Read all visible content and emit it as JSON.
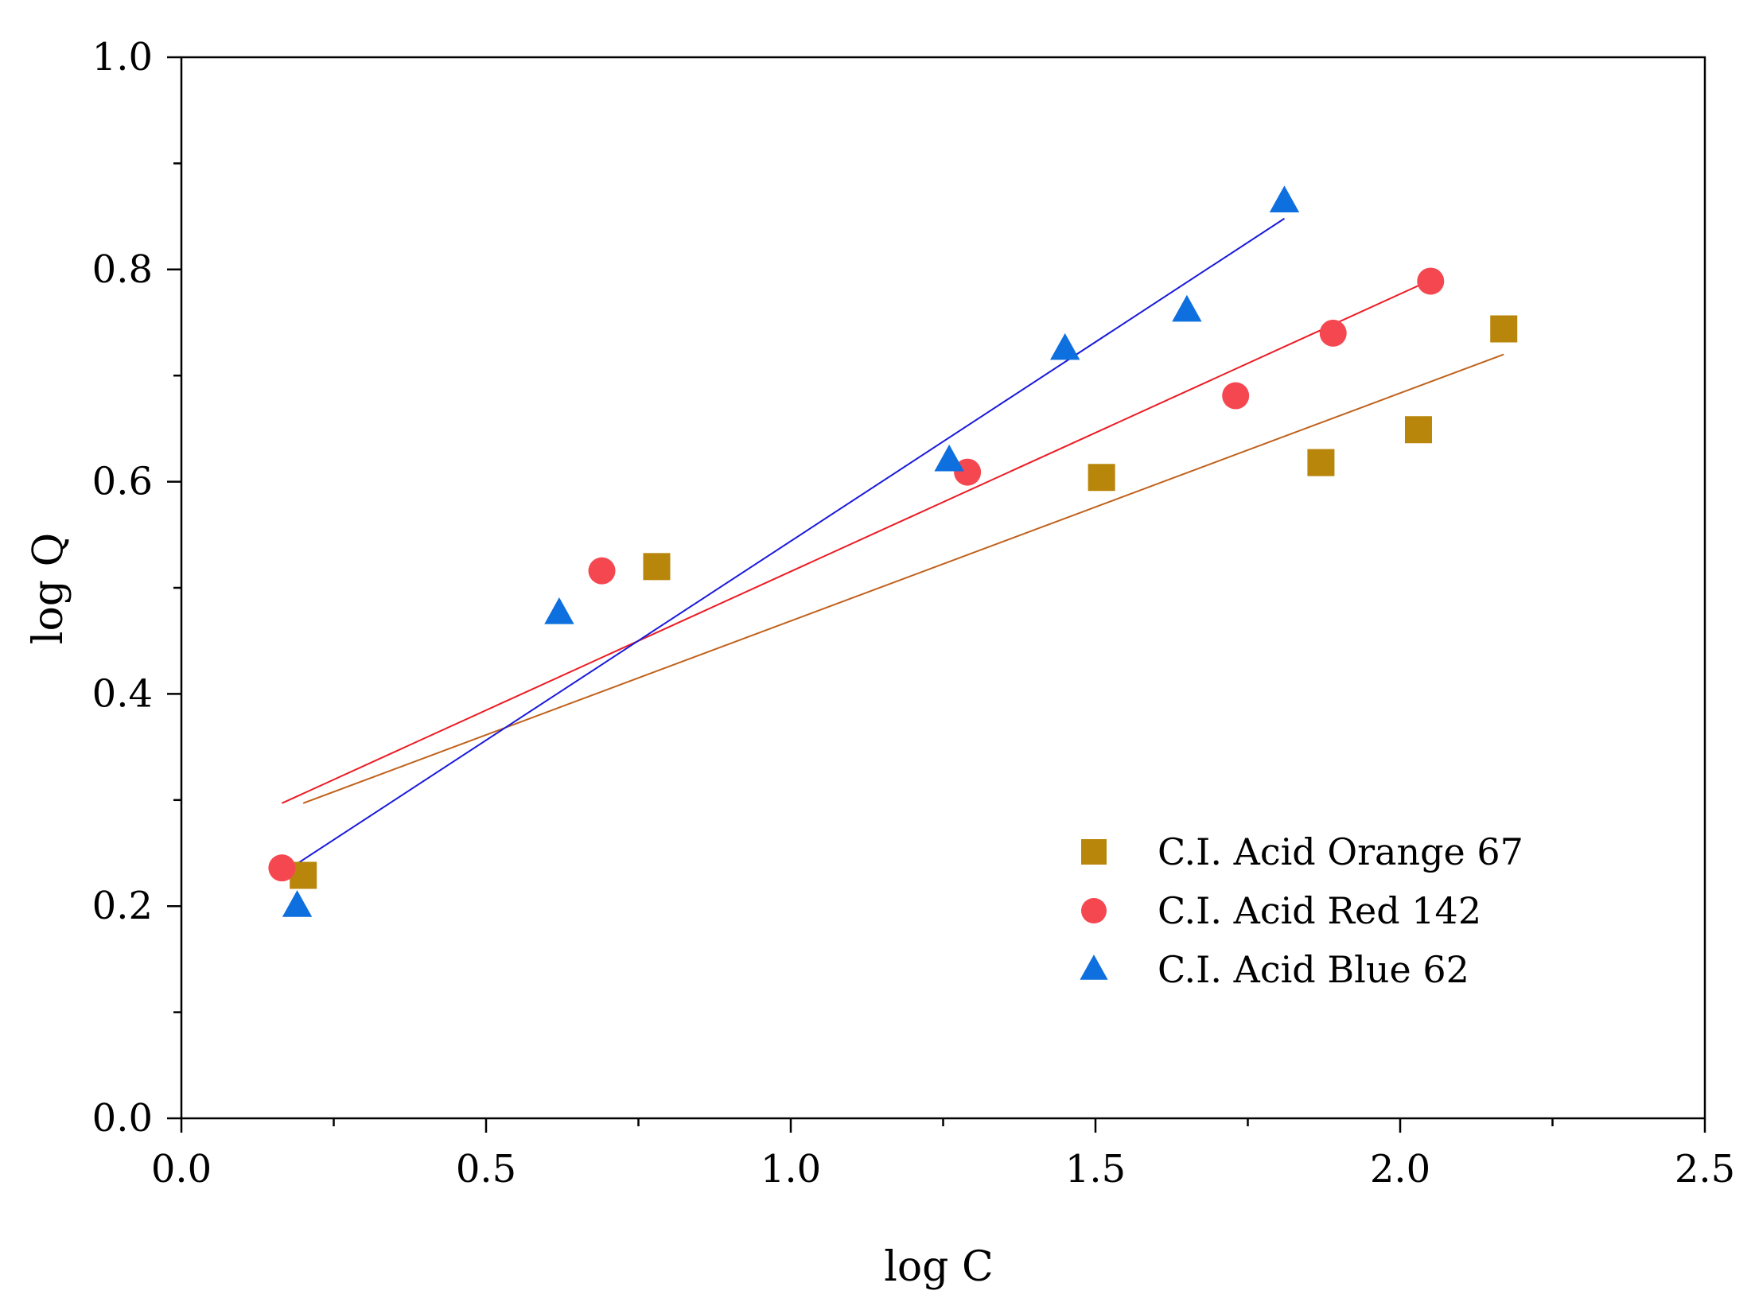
{
  "chart_data": {
    "type": "scatter",
    "xlabel": "log C",
    "ylabel": "log Q",
    "xlim": [
      0.0,
      2.5
    ],
    "ylim": [
      0.0,
      1.0
    ],
    "x_ticks": [
      "0.0",
      "0.5",
      "1.0",
      "1.5",
      "2.0",
      "2.5"
    ],
    "y_ticks": [
      "0.0",
      "0.2",
      "0.4",
      "0.6",
      "0.8",
      "1.0"
    ],
    "grid": false,
    "legend_position": "bottom-right",
    "series": [
      {
        "name": "C.I. Acid Orange 67",
        "marker": "square",
        "color": "#b8860b",
        "line_color": "#c0621c",
        "x": [
          0.2,
          0.78,
          1.51,
          1.87,
          2.03,
          2.17
        ],
        "y": [
          0.229,
          0.52,
          0.604,
          0.618,
          0.649,
          0.744
        ],
        "fit_x": [
          0.2,
          2.17
        ],
        "fit_y": [
          0.297,
          0.72
        ]
      },
      {
        "name": "C.I. Acid Red 142",
        "marker": "circle",
        "color": "#f54750",
        "line_color": "#ec1c24",
        "x": [
          0.165,
          0.69,
          1.29,
          1.73,
          1.89,
          2.05
        ],
        "y": [
          0.236,
          0.516,
          0.609,
          0.681,
          0.74,
          0.789
        ],
        "fit_x": [
          0.165,
          2.05
        ],
        "fit_y": [
          0.297,
          0.79
        ]
      },
      {
        "name": "C.I. Acid Blue 62",
        "marker": "triangle",
        "color": "#0e6fde",
        "line_color": "#1a1adc",
        "x": [
          0.19,
          0.62,
          1.26,
          1.45,
          1.65,
          1.81
        ],
        "y": [
          0.2,
          0.476,
          0.62,
          0.725,
          0.761,
          0.864
        ],
        "fit_x": [
          0.19,
          1.81
        ],
        "fit_y": [
          0.24,
          0.848
        ]
      }
    ]
  }
}
